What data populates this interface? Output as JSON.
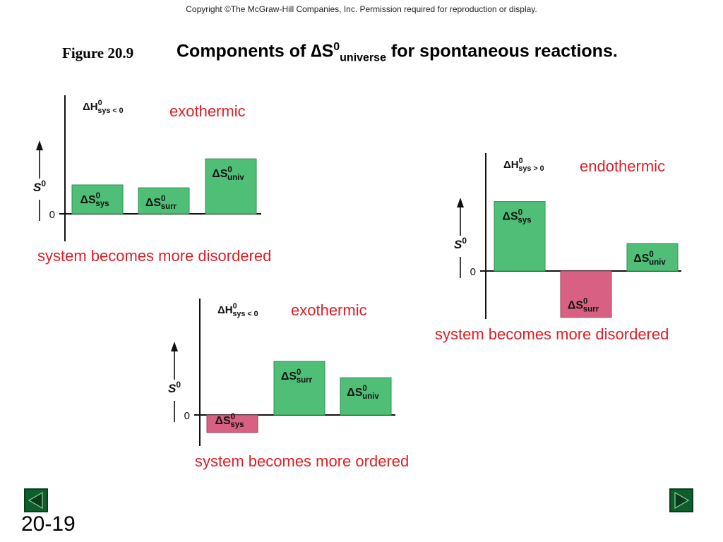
{
  "copyright": "Copyright ©The McGraw-Hill Companies, Inc.  Permission required for reproduction or display.",
  "figure_label": "Figure 20.9",
  "heading": {
    "text_before": "Components of ",
    "delta": "∆",
    "symbol": "S",
    "superscript": "0",
    "subscript": "universe",
    "text_after": " for spontaneous reactions."
  },
  "slide_number": "20-19",
  "panels": [
    {
      "dh_label": "ΔH",
      "dh_sup": "0",
      "dh_sub": "sys",
      "dh_rel": "< 0",
      "y_axis_label": "S",
      "y_axis_sup": "0",
      "zero_label": "0",
      "kind": "exothermic",
      "result": "system becomes more disordered",
      "bars": [
        {
          "label": "ΔS",
          "sup": "0",
          "sub": "sys",
          "value": 1.0,
          "sign": "positive"
        },
        {
          "label": "ΔS",
          "sup": "0",
          "sub": "surr",
          "value": 0.9,
          "sign": "positive"
        },
        {
          "label": "ΔS",
          "sup": "0",
          "sub": "univ",
          "value": 1.9,
          "sign": "positive"
        }
      ]
    },
    {
      "dh_label": "ΔH",
      "dh_sup": "0",
      "dh_sub": "sys",
      "dh_rel": "> 0",
      "y_axis_label": "S",
      "y_axis_sup": "0",
      "zero_label": "0",
      "kind": "endothermic",
      "result": "system becomes more disordered",
      "bars": [
        {
          "label": "ΔS",
          "sup": "0",
          "sub": "sys",
          "value": 2.4,
          "sign": "positive"
        },
        {
          "label": "ΔS",
          "sup": "0",
          "sub": "surr",
          "value": -1.6,
          "sign": "negative"
        },
        {
          "label": "ΔS",
          "sup": "0",
          "sub": "univ",
          "value": 0.95,
          "sign": "positive"
        }
      ]
    },
    {
      "dh_label": "ΔH",
      "dh_sup": "0",
      "dh_sub": "sys",
      "dh_rel": "< 0",
      "y_axis_label": "S",
      "y_axis_sup": "0",
      "zero_label": "0",
      "kind": "exothermic",
      "result": "system becomes more ordered",
      "bars": [
        {
          "label": "ΔS",
          "sup": "0",
          "sub": "sys",
          "value": -0.75,
          "sign": "negative"
        },
        {
          "label": "ΔS",
          "sup": "0",
          "sub": "surr",
          "value": 2.3,
          "sign": "positive"
        },
        {
          "label": "ΔS",
          "sup": "0",
          "sub": "univ",
          "value": 1.6,
          "sign": "positive"
        }
      ]
    }
  ],
  "nav": {
    "prev_icon": "triangle-left-icon",
    "next_icon": "triangle-right-icon"
  },
  "colors": {
    "positive_bar": "#4fbf78",
    "negative_bar": "#d86183",
    "note_red": "#e01e24",
    "nav_green": "#0d5e2c"
  }
}
